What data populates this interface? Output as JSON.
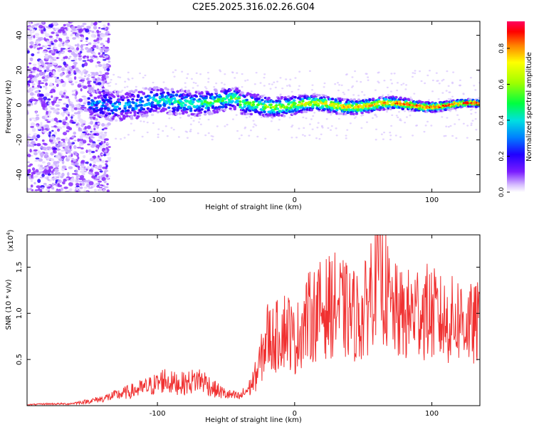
{
  "chart_data": [
    {
      "type": "heatmap",
      "title": "C2E5.2025.316.02.26.G04",
      "xlabel": "Height of straight line (km)",
      "ylabel": "Frequency (Hz)",
      "xlim": [
        -195,
        135
      ],
      "ylim": [
        -50,
        48
      ],
      "xticks": [
        -100,
        0,
        100
      ],
      "yticks": [
        -40,
        -20,
        0,
        20,
        40
      ],
      "colorbar": {
        "label": "Normalized spectral amplitude",
        "range": [
          0,
          0.95
        ],
        "ticks": [
          "0.0",
          "0.2",
          "0.4",
          "0.6",
          "0.8"
        ],
        "tick_values": [
          0.0,
          0.2,
          0.4,
          0.6,
          0.8
        ],
        "colors": [
          "#ffffff",
          "#d9c2ff",
          "#7a1cff",
          "#2000ff",
          "#0080ff",
          "#00e0e0",
          "#00ff40",
          "#a0ff00",
          "#ffff00",
          "#ff8000",
          "#ff0000",
          "#ff0060"
        ]
      },
      "ridge": {
        "description": "dominant frequency band near 0 Hz",
        "x_start": -150,
        "x_end": 135,
        "frequency": 0
      }
    },
    {
      "type": "line",
      "xlabel": "Height of straight line (km)",
      "ylabel": "SNR (10 * v/v)",
      "scale_label": "(x10",
      "scale_exp": "4",
      "scale_close": ")",
      "xlim": [
        -195,
        135
      ],
      "ylim": [
        0,
        1.85
      ],
      "xticks": [
        -100,
        0,
        100
      ],
      "yticks": [
        "0.5",
        "1.0",
        "1.5"
      ],
      "ytick_values": [
        0.5,
        1.0,
        1.5
      ],
      "color": "#f03030",
      "series": [
        {
          "name": "SNR",
          "x": [
            -195,
            -180,
            -165,
            -150,
            -140,
            -130,
            -120,
            -110,
            -100,
            -95,
            -90,
            -80,
            -70,
            -65,
            -60,
            -50,
            -40,
            -33,
            -28,
            -24,
            -20,
            -15,
            -10,
            -5,
            0,
            5,
            10,
            20,
            30,
            40,
            50,
            55,
            60,
            70,
            80,
            90,
            100,
            110,
            120,
            130,
            135
          ],
          "values": [
            0.01,
            0.02,
            0.02,
            0.05,
            0.08,
            0.12,
            0.16,
            0.2,
            0.25,
            0.3,
            0.26,
            0.25,
            0.3,
            0.27,
            0.2,
            0.13,
            0.1,
            0.2,
            0.35,
            0.55,
            0.8,
            0.75,
            0.85,
            0.9,
            0.7,
            0.9,
            1.0,
            1.1,
            1.15,
            1.05,
            1.0,
            1.3,
            1.7,
            1.1,
            1.0,
            1.1,
            1.05,
            0.95,
            1.0,
            0.9,
            0.95
          ]
        }
      ]
    }
  ]
}
